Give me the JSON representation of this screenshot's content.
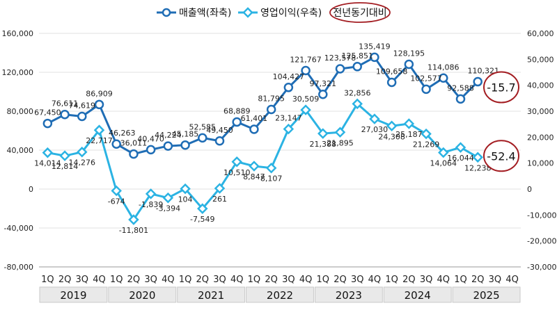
{
  "chart_data": {
    "type": "line",
    "legend": [
      {
        "label": "매출액(좌축)",
        "color": "#1f6db5",
        "marker": "circle"
      },
      {
        "label": "영업이익(우축)",
        "color": "#2bb3e3",
        "marker": "diamond"
      },
      {
        "label": "전년동기대비"
      }
    ],
    "legend_position": "top-center",
    "left_axis": {
      "min": -80000,
      "max": 160000,
      "ticks": [
        -80000,
        -40000,
        0,
        40000,
        80000,
        120000,
        160000
      ],
      "tick_labels": [
        "-80,000",
        "-40,000",
        "0",
        "40,000",
        "80,000",
        "120,000",
        "160,000"
      ]
    },
    "right_axis": {
      "min": -30000,
      "max": 60000,
      "ticks": [
        -30000,
        -20000,
        -10000,
        0,
        10000,
        20000,
        30000,
        40000,
        50000,
        60000
      ],
      "tick_labels": [
        "-30,000",
        "-20,000",
        "-10,000",
        "0",
        "10,000",
        "20,000",
        "30,000",
        "40,000",
        "50,000",
        "60,000"
      ]
    },
    "quarters": [
      "1Q",
      "2Q",
      "3Q",
      "4Q",
      "1Q",
      "2Q",
      "3Q",
      "4Q",
      "1Q",
      "2Q",
      "3Q",
      "4Q",
      "1Q",
      "2Q",
      "3Q",
      "4Q",
      "1Q",
      "2Q",
      "3Q",
      "4Q",
      "1Q",
      "2Q",
      "3Q",
      "4Q",
      "1Q",
      "2Q",
      "3Q",
      "4Q"
    ],
    "years": [
      "2019",
      "2020",
      "2021",
      "2022",
      "2023",
      "2024",
      "2025"
    ],
    "grid": true,
    "series": [
      {
        "name": "매출액(좌축)",
        "axis": "left",
        "color": "#1f6db5",
        "values": [
          67450,
          76611,
          74619,
          86909,
          46263,
          36011,
          40470,
          44224,
          45185,
          52585,
          49450,
          68889,
          61401,
          81795,
          104427,
          121767,
          97321,
          123578,
          125851,
          135419,
          109658,
          128195,
          102577,
          114086,
          92588,
          110321,
          null,
          null
        ],
        "labels": [
          "67,450",
          "76,611",
          "74,619",
          "86,909",
          "46,263",
          "36,011",
          "40,470",
          "44,224",
          "45,185",
          "52,585",
          "49,450",
          "68,889",
          "61,401",
          "81,795",
          "104,427",
          "121,767",
          "97,321",
          "123,578",
          "125,851",
          "135,419",
          "109,658",
          "128,195",
          "102,577",
          "114,086",
          "92,588",
          "110,321",
          null,
          null
        ]
      },
      {
        "name": "영업이익(우축)",
        "axis": "right",
        "color": "#2bb3e3",
        "values": [
          14014,
          12814,
          14276,
          22717,
          -674,
          -11801,
          -1839,
          -3394,
          104,
          -7549,
          261,
          10510,
          8847,
          8107,
          23147,
          30509,
          21388,
          21895,
          32856,
          27030,
          24308,
          25187,
          21269,
          14064,
          16044,
          12238,
          null,
          null
        ],
        "labels": [
          "14,014",
          "12,814",
          "14,276",
          "22,717",
          "-674",
          "-11,801",
          "-1,839",
          "-3,394",
          "104",
          "-7,549",
          "261",
          "10,510",
          "8,847",
          "8,107",
          "23,147",
          "30,509",
          "21,388",
          "21,895",
          "32,856",
          "27,030",
          "24,308",
          "25,187",
          "21,269",
          "14,064",
          "16,044",
          "12,238",
          null,
          null
        ]
      }
    ],
    "annotations": [
      {
        "text": "-15.7",
        "series": "매출액(좌축)"
      },
      {
        "text": "-52.4",
        "series": "영업이익(우축)"
      }
    ]
  }
}
